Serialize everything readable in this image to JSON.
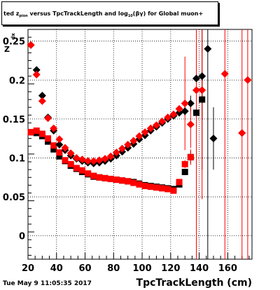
{
  "chart_data": {
    "type": "scatter",
    "title_parts": {
      "prefix": "ted  z",
      "sub1": "pion",
      "mid": " versus TpcTrackLength and log",
      "sub2": "10",
      "suffix": "(βγ) for Global muon+"
    },
    "ylabel_main": "Z",
    "ylabel_sub": "dx",
    "xlabel": "TpcTrackLength (cm)",
    "footer": "Tue May  9 11:05:35 2017",
    "xlim": [
      20,
      177
    ],
    "ylim": [
      -0.03,
      0.265
    ],
    "x_ticks": [
      20,
      40,
      60,
      80,
      100,
      120,
      140,
      160
    ],
    "y_ticks": [
      0,
      0.05,
      0.1,
      0.15,
      0.2,
      0.25
    ],
    "y_tick_labels": [
      "0",
      "0.05",
      "0.1",
      "0.15",
      "0.2",
      "0.25"
    ],
    "grid": true,
    "colors": {
      "series_a": "#000000",
      "series_b": "#ff0000"
    },
    "series": [
      {
        "marker": "square",
        "color": "#000000",
        "points": [
          [
            22,
            0.133,
            0
          ],
          [
            26,
            0.132,
            0
          ],
          [
            30,
            0.128,
            0
          ],
          [
            34,
            0.121,
            0
          ],
          [
            38,
            0.111,
            0
          ],
          [
            42,
            0.102,
            0
          ],
          [
            46,
            0.096,
            0
          ],
          [
            50,
            0.09,
            0
          ],
          [
            54,
            0.086,
            0
          ],
          [
            58,
            0.082,
            0
          ],
          [
            62,
            0.079,
            0
          ],
          [
            66,
            0.076,
            0
          ],
          [
            70,
            0.075,
            0
          ],
          [
            74,
            0.074,
            0
          ],
          [
            78,
            0.073,
            0
          ],
          [
            82,
            0.072,
            0
          ],
          [
            86,
            0.071,
            0
          ],
          [
            90,
            0.07,
            0
          ],
          [
            94,
            0.069,
            0
          ],
          [
            98,
            0.067,
            0
          ],
          [
            102,
            0.065,
            0
          ],
          [
            106,
            0.064,
            0
          ],
          [
            110,
            0.063,
            0
          ],
          [
            114,
            0.062,
            0
          ],
          [
            118,
            0.061,
            0
          ],
          [
            122,
            0.06,
            0
          ],
          [
            126,
            0.066,
            0
          ],
          [
            130,
            0.082,
            0.004
          ],
          [
            134,
            0.101,
            0.008
          ],
          [
            138,
            0.158,
            0.02
          ],
          [
            142,
            0.175,
            0.025
          ]
        ]
      },
      {
        "marker": "square",
        "color": "#ff0000",
        "points": [
          [
            22,
            0.133,
            0
          ],
          [
            26,
            0.135,
            0
          ],
          [
            30,
            0.131,
            0
          ],
          [
            34,
            0.125,
            0
          ],
          [
            38,
            0.116,
            0
          ],
          [
            42,
            0.107,
            0
          ],
          [
            46,
            0.097,
            0
          ],
          [
            50,
            0.092,
            0
          ],
          [
            54,
            0.087,
            0
          ],
          [
            58,
            0.084,
            0
          ],
          [
            62,
            0.08,
            0
          ],
          [
            66,
            0.077,
            0
          ],
          [
            70,
            0.075,
            0
          ],
          [
            74,
            0.074,
            0
          ],
          [
            78,
            0.073,
            0
          ],
          [
            82,
            0.072,
            0
          ],
          [
            86,
            0.071,
            0
          ],
          [
            90,
            0.07,
            0
          ],
          [
            94,
            0.068,
            0
          ],
          [
            98,
            0.066,
            0
          ],
          [
            102,
            0.064,
            0
          ],
          [
            106,
            0.063,
            0
          ],
          [
            110,
            0.062,
            0
          ],
          [
            114,
            0.061,
            0
          ],
          [
            118,
            0.06,
            0
          ],
          [
            122,
            0.058,
            0
          ],
          [
            126,
            0.069,
            0
          ],
          [
            130,
            0.092,
            0.005
          ],
          [
            134,
            0.101,
            0.01
          ]
        ]
      },
      {
        "marker": "diamond",
        "color": "#000000",
        "points": [
          [
            22,
            0.245,
            0
          ],
          [
            26,
            0.213,
            0
          ],
          [
            30,
            0.18,
            0
          ],
          [
            34,
            0.152,
            0
          ],
          [
            38,
            0.135,
            0
          ],
          [
            42,
            0.117,
            0
          ],
          [
            46,
            0.11,
            0
          ],
          [
            50,
            0.103,
            0
          ],
          [
            54,
            0.099,
            0
          ],
          [
            58,
            0.096,
            0
          ],
          [
            62,
            0.094,
            0
          ],
          [
            66,
            0.093,
            0
          ],
          [
            70,
            0.094,
            0
          ],
          [
            74,
            0.096,
            0
          ],
          [
            78,
            0.099,
            0
          ],
          [
            82,
            0.103,
            0
          ],
          [
            86,
            0.108,
            0
          ],
          [
            90,
            0.113,
            0
          ],
          [
            94,
            0.118,
            0
          ],
          [
            98,
            0.124,
            0
          ],
          [
            102,
            0.129,
            0
          ],
          [
            106,
            0.135,
            0
          ],
          [
            110,
            0.14,
            0
          ],
          [
            114,
            0.145,
            0
          ],
          [
            118,
            0.15,
            0
          ],
          [
            122,
            0.154,
            0
          ],
          [
            126,
            0.158,
            0.003
          ],
          [
            130,
            0.16,
            0.006
          ],
          [
            134,
            0.17,
            0.01
          ],
          [
            138,
            0.202,
            0.05
          ],
          [
            142,
            0.205,
            0.12
          ],
          [
            146,
            0.24,
            0.3
          ],
          [
            150,
            0.125,
            0.04
          ]
        ]
      },
      {
        "marker": "diamond",
        "color": "#ff0000",
        "points": [
          [
            22,
            0.245,
            0
          ],
          [
            26,
            0.207,
            0
          ],
          [
            30,
            0.173,
            0
          ],
          [
            34,
            0.151,
            0
          ],
          [
            38,
            0.138,
            0
          ],
          [
            42,
            0.124,
            0
          ],
          [
            46,
            0.113,
            0
          ],
          [
            50,
            0.106,
            0
          ],
          [
            54,
            0.1,
            0
          ],
          [
            58,
            0.098,
            0
          ],
          [
            62,
            0.096,
            0
          ],
          [
            66,
            0.096,
            0
          ],
          [
            70,
            0.097,
            0
          ],
          [
            74,
            0.099,
            0
          ],
          [
            78,
            0.102,
            0
          ],
          [
            82,
            0.107,
            0
          ],
          [
            86,
            0.112,
            0
          ],
          [
            90,
            0.117,
            0
          ],
          [
            94,
            0.122,
            0
          ],
          [
            98,
            0.128,
            0
          ],
          [
            102,
            0.133,
            0
          ],
          [
            106,
            0.138,
            0
          ],
          [
            110,
            0.142,
            0
          ],
          [
            114,
            0.147,
            0
          ],
          [
            118,
            0.152,
            0
          ],
          [
            122,
            0.156,
            0
          ],
          [
            126,
            0.163,
            0.003
          ],
          [
            130,
            0.17,
            0.06
          ],
          [
            134,
            0.143,
            0.03
          ],
          [
            138,
            0.187,
            0.25
          ],
          [
            142,
            0.187,
            0.14
          ],
          [
            158,
            0.208,
            0.3
          ],
          [
            170,
            0.132,
            0.3
          ],
          [
            174,
            0.2,
            0.3
          ]
        ]
      }
    ]
  }
}
